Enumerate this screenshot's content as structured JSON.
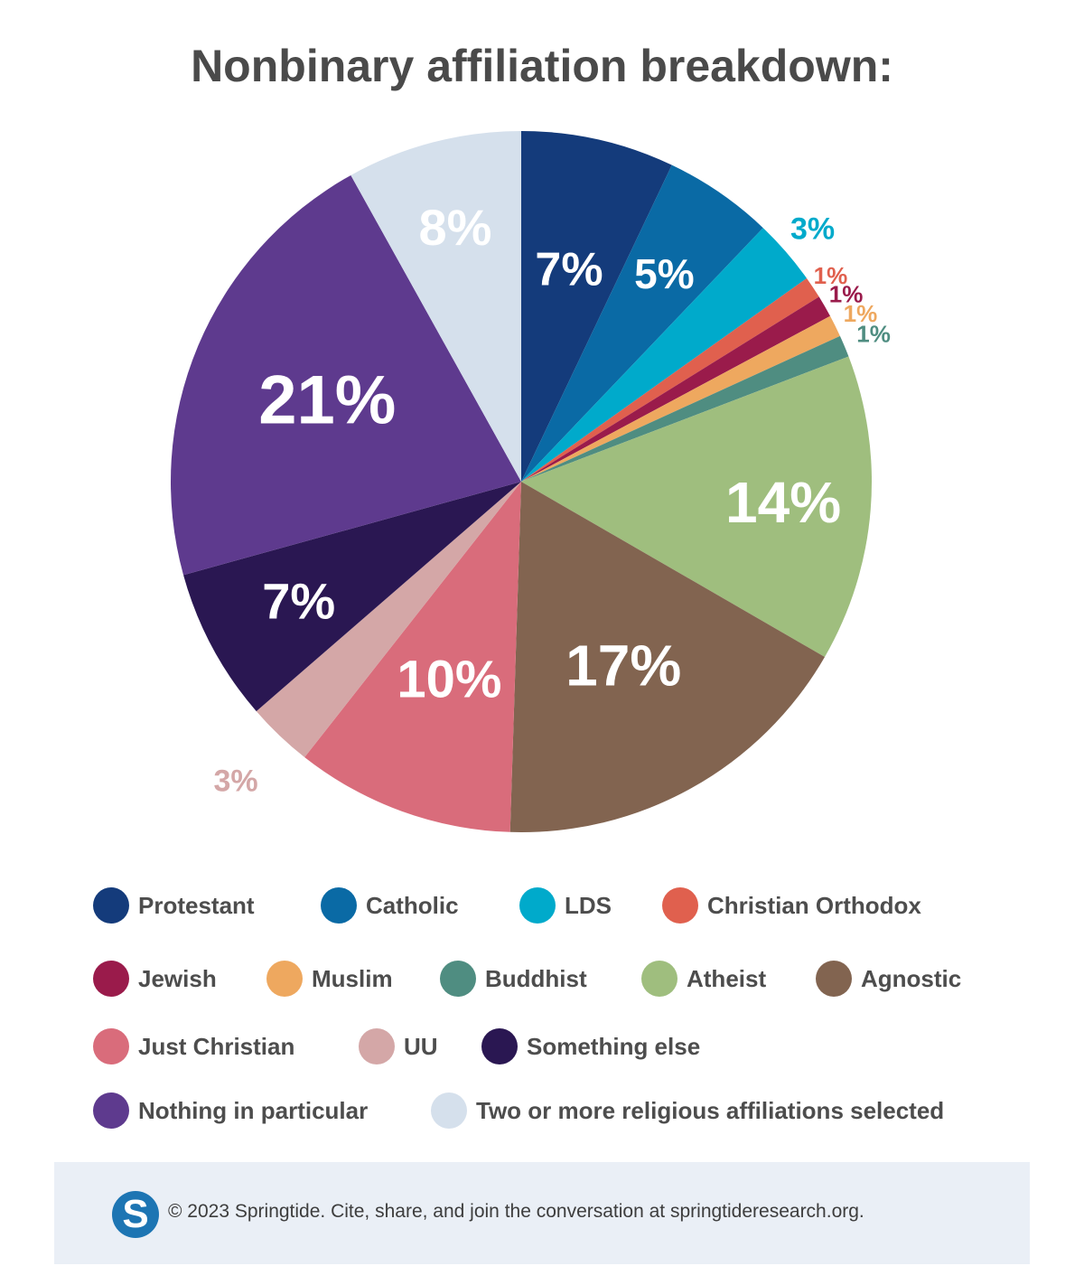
{
  "chart_data": {
    "type": "pie",
    "title": "Nonbinary affiliation breakdown:",
    "slices": [
      {
        "label": "Protestant",
        "value": 7,
        "display": "7%",
        "color": "#143b7b",
        "label_color": "#ffffff"
      },
      {
        "label": "Catholic",
        "value": 5,
        "display": "5%",
        "color": "#0a6aa5",
        "label_color": "#ffffff"
      },
      {
        "label": "LDS",
        "value": 3,
        "display": "3%",
        "color": "#00aacb",
        "label_color": "#00aacb"
      },
      {
        "label": "Christian Orthodox",
        "value": 1,
        "display": "1%",
        "color": "#e0604e",
        "label_color": "#e0604e"
      },
      {
        "label": "Jewish",
        "value": 1,
        "display": "1%",
        "color": "#9a1b4b",
        "label_color": "#9a1b4b"
      },
      {
        "label": "Muslim",
        "value": 1,
        "display": "1%",
        "color": "#eea85f",
        "label_color": "#eea85f"
      },
      {
        "label": "Buddhist",
        "value": 1,
        "display": "1%",
        "color": "#4f8d81",
        "label_color": "#4f8d81"
      },
      {
        "label": "Atheist",
        "value": 14,
        "display": "14%",
        "color": "#9fbe7e",
        "label_color": "#ffffff"
      },
      {
        "label": "Agnostic",
        "value": 17,
        "display": "17%",
        "color": "#826450",
        "label_color": "#ffffff"
      },
      {
        "label": "Just Christian",
        "value": 10,
        "display": "10%",
        "color": "#d96c7b",
        "label_color": "#ffffff"
      },
      {
        "label": "UU",
        "value": 3,
        "display": "3%",
        "color": "#d4a7a7",
        "label_color": "#d4a7a7"
      },
      {
        "label": "Something else",
        "value": 7,
        "display": "7%",
        "color": "#2a1752",
        "label_color": "#ffffff"
      },
      {
        "label": "Nothing in particular",
        "value": 21,
        "display": "21%",
        "color": "#5e3a8e",
        "label_color": "#ffffff"
      },
      {
        "label": "Two or more religious affiliations selected",
        "value": 8,
        "display": "8%",
        "color": "#d5e0ec",
        "label_color": "#ffffff"
      }
    ],
    "legend_placement": "bottom"
  },
  "footer": {
    "logo_letter": "S",
    "text": "© 2023 Springtide. Cite, share, and join the conversation at springtideresearch.org."
  }
}
